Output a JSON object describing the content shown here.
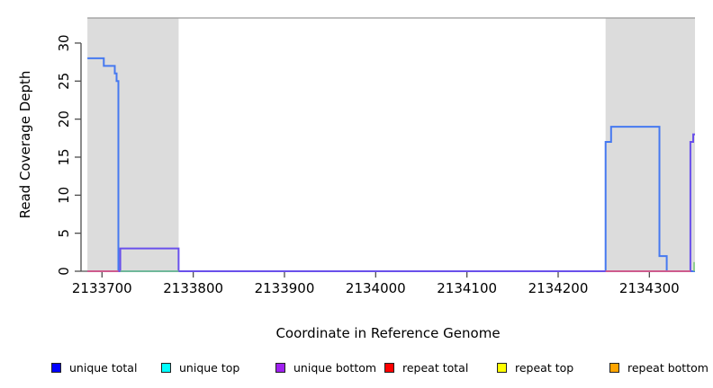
{
  "figure": {
    "xlabel": "Coordinate in Reference Genome",
    "ylabel": "Read Coverage Depth"
  },
  "legend": {
    "items": [
      {
        "label": "unique total",
        "color": "#0000ff"
      },
      {
        "label": "unique top",
        "color": "#00ffff"
      },
      {
        "label": "unique bottom",
        "color": "#a020f0"
      },
      {
        "label": "repeat total",
        "color": "#ff0000"
      },
      {
        "label": "repeat top",
        "color": "#ffff00"
      },
      {
        "label": "repeat bottom",
        "color": "#ffa500"
      }
    ]
  },
  "chart_data": {
    "type": "line",
    "title": "",
    "xlabel": "Coordinate in Reference Genome",
    "ylabel": "Read Coverage Depth",
    "xlim": [
      2133677,
      2134350
    ],
    "ylim": [
      0,
      33.3
    ],
    "x_ticks": [
      2133700,
      2133800,
      2133900,
      2134000,
      2134100,
      2134200,
      2134300
    ],
    "y_ticks": [
      0,
      5,
      10,
      15,
      20,
      25,
      30
    ],
    "grid": false,
    "legend_position": "bottom",
    "axis_color": "#4d4d4d",
    "tick_label_size": 15,
    "shaded_regions": [
      {
        "x0": 2133684,
        "x1": 2133784,
        "color": "#dcdcdc"
      },
      {
        "x0": 2134252,
        "x1": 2134350,
        "color": "#dcdcdc"
      }
    ],
    "top_border": {
      "x0": 2133684,
      "x1": 2134350,
      "y": 33.3,
      "color": "#999999"
    },
    "series": [
      {
        "name": "unique total",
        "color": "#4679f0",
        "width": 2,
        "paths": [
          [
            [
              2133684,
              28
            ],
            [
              2133702,
              28
            ],
            [
              2133702,
              27
            ],
            [
              2133714,
              27
            ],
            [
              2133714,
              26
            ],
            [
              2133716,
              26
            ],
            [
              2133716,
              25
            ],
            [
              2133718,
              25
            ],
            [
              2133718,
              0
            ],
            [
              2134252,
              0
            ],
            [
              2134252,
              17
            ],
            [
              2134258,
              17
            ],
            [
              2134258,
              19
            ],
            [
              2134311,
              19
            ],
            [
              2134311,
              2
            ],
            [
              2134319,
              2
            ],
            [
              2134319,
              0
            ],
            [
              2134350,
              0
            ]
          ]
        ]
      },
      {
        "name": "unique bottom",
        "color": "#6950eb",
        "width": 2,
        "paths": [
          [
            [
              2133684,
              0
            ],
            [
              2133720,
              0
            ],
            [
              2133720,
              3
            ],
            [
              2133784,
              3
            ],
            [
              2133784,
              0
            ],
            [
              2134345,
              0
            ],
            [
              2134345,
              17
            ],
            [
              2134348,
              17
            ],
            [
              2134348,
              18
            ],
            [
              2134350,
              18
            ]
          ]
        ]
      },
      {
        "name": "repeat total",
        "color": "#f05f6e",
        "width": 1.6,
        "paths": [
          [
            [
              2133684,
              0
            ],
            [
              2133718,
              0
            ]
          ],
          [
            [
              2134252,
              0
            ],
            [
              2134345,
              0
            ]
          ]
        ]
      },
      {
        "name": "green (unlabeled)",
        "color": "#7dcd7d",
        "width": 1.6,
        "paths": [
          [
            [
              2133720,
              0
            ],
            [
              2133784,
              0
            ]
          ],
          [
            [
              2134349,
              0
            ],
            [
              2134349,
              1.2
            ]
          ]
        ]
      }
    ]
  }
}
